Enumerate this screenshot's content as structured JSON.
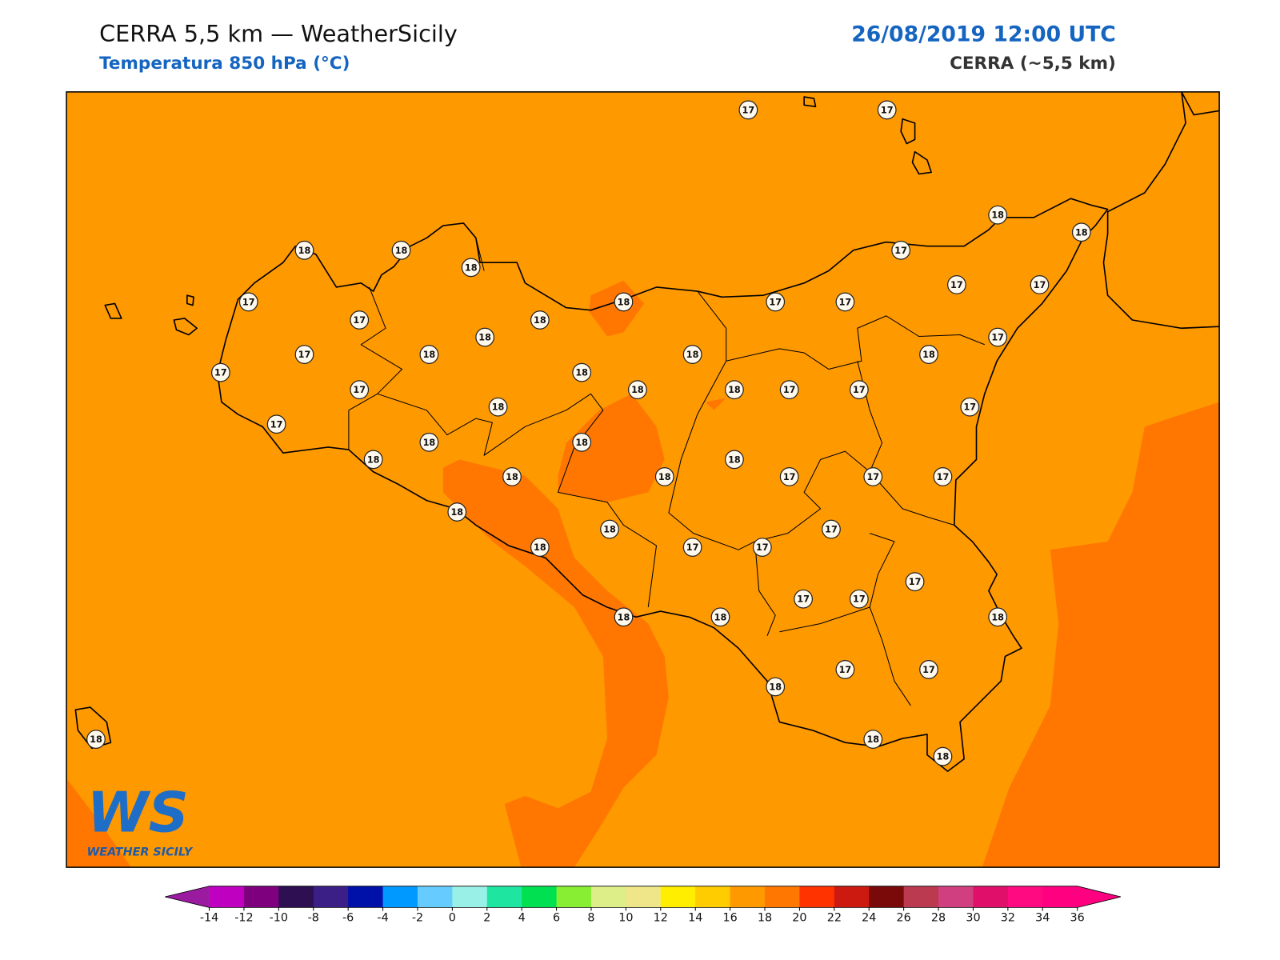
{
  "header": {
    "title": "CERRA 5,5 km — WeatherSicily",
    "subtitle": "Temperatura 850 hPa (°C)",
    "datetime": "26/08/2019 12:00 UTC",
    "source": "CERRA (~5,5 km)"
  },
  "map": {
    "fill": "#ff9900",
    "warm_fill": "#ff7700",
    "stations": [
      17,
      17,
      18,
      18,
      18,
      18,
      18,
      17,
      17,
      18,
      17,
      17,
      17,
      17,
      17,
      18,
      18,
      17,
      17,
      18,
      18,
      18,
      17,
      18,
      17,
      18,
      18,
      17,
      17,
      18,
      17,
      17,
      18,
      18,
      18,
      18,
      18,
      18,
      17,
      17,
      17,
      18,
      18,
      17,
      18,
      17,
      17,
      17,
      17,
      17,
      18,
      18,
      18,
      18,
      17,
      17,
      18,
      18,
      18
    ]
  },
  "colorbar": {
    "ticks": [
      -14,
      -12,
      -10,
      -8,
      -6,
      -4,
      -2,
      0,
      2,
      4,
      6,
      8,
      10,
      12,
      14,
      16,
      18,
      20,
      22,
      24,
      26,
      28,
      30,
      32,
      34,
      36
    ],
    "colors": [
      "#c000c0",
      "#7f007f",
      "#2d0f52",
      "#3b1f86",
      "#0011aa",
      "#0099ff",
      "#66ccff",
      "#99f0e6",
      "#1ee6a0",
      "#00e050",
      "#88ee33",
      "#ddee88",
      "#eee688",
      "#ffee00",
      "#ffcc00",
      "#ff9900",
      "#ff7700",
      "#ff3300",
      "#cc1a10",
      "#7a0a0a",
      "#bb3a50",
      "#d04080",
      "#e0106a",
      "#ff0a80",
      "#ff0080"
    ],
    "under": "#9a1aa0",
    "over": "#ff0080"
  },
  "logo": {
    "mark": "WS",
    "name": "WEATHER SICILY"
  }
}
